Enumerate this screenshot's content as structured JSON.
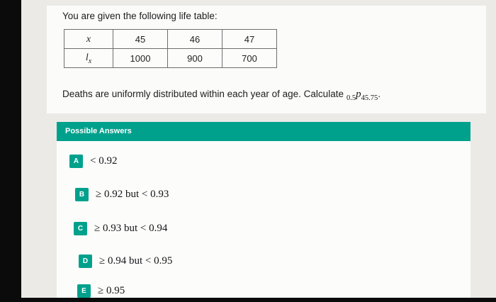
{
  "question": {
    "intro": "You are given the following life table:",
    "table": {
      "row1": {
        "label": "x",
        "values": [
          "45",
          "46",
          "47"
        ]
      },
      "row2": {
        "label_base": "l",
        "label_sub": "x",
        "values": [
          "1000",
          "900",
          "700"
        ]
      }
    },
    "statement_pre": "Deaths are uniformly distributed within each year of age. Calculate",
    "probability": {
      "presub": "0.5",
      "base": "p",
      "sub": "45.75"
    },
    "statement_post": "."
  },
  "answers": {
    "header": "Possible Answers",
    "options": [
      {
        "letter": "A",
        "text": "< 0.92"
      },
      {
        "letter": "B",
        "text": "≥ 0.92 but < 0.93"
      },
      {
        "letter": "C",
        "text": "≥ 0.93 but < 0.94"
      },
      {
        "letter": "D",
        "text": "≥ 0.94 but < 0.95"
      },
      {
        "letter": "E",
        "text": "≥ 0.95"
      }
    ]
  },
  "colors": {
    "accent_teal": "#00a18c",
    "screen_background": "#ebeae7",
    "card_background": "#fbfbf9",
    "photo_border": "#0b0b0b"
  }
}
